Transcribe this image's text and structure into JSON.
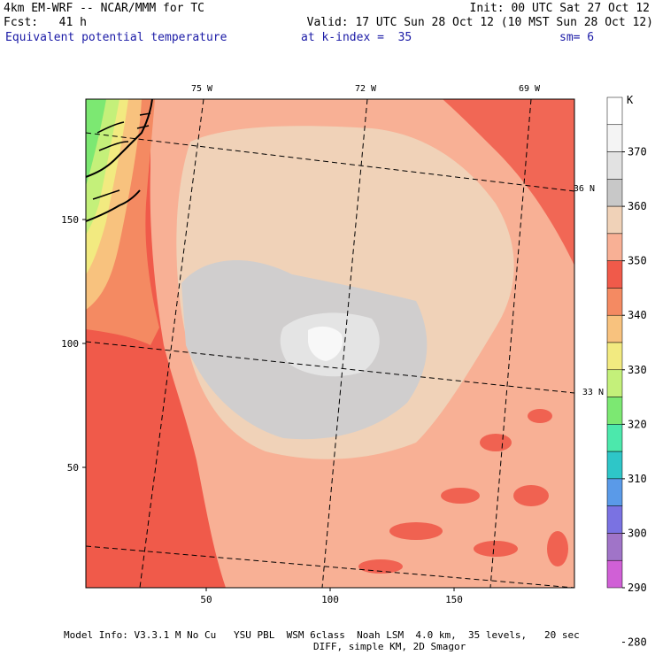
{
  "header": {
    "line1_left": "4km EM-WRF -- NCAR/MMM for TC",
    "line1_right": "Init: 00 UTC Sat 27 Oct 12",
    "line2_left": "Fcst:   41 h",
    "line2_right": "Valid: 17 UTC Sun 28 Oct 12 (10 MST Sun 28 Oct 12)",
    "field_name": "Equivalent potential temperature",
    "level": "at k-index =  35",
    "smoothing": "sm= 6"
  },
  "map": {
    "x_ticks": [
      "50",
      "100",
      "150"
    ],
    "y_ticks": [
      "50",
      "100",
      "150"
    ],
    "lon_labels": [
      "75 W",
      "72 W",
      "69 W"
    ],
    "lat_labels": [
      "36 N",
      "33 N"
    ]
  },
  "colorbar": {
    "unit": "K",
    "labels": [
      "370",
      "360",
      "350",
      "340",
      "330",
      "320",
      "310",
      "300",
      "290",
      "280"
    ],
    "colors": [
      "#ffffff",
      "#f4f4f4",
      "#e2e2e2",
      "#c8c8c8",
      "#f0d2b8",
      "#f8b095",
      "#f05a4a",
      "#f48a62",
      "#f8c27e",
      "#f2ea80",
      "#c4f07a",
      "#7ce872",
      "#4ce8ac",
      "#2ec6c8",
      "#5a9ae8",
      "#7a72e2",
      "#a074c8",
      "#d060d6"
    ]
  },
  "footer": {
    "line1": "Model Info: V3.3.1 M No Cu   YSU PBL  WSM 6class  Noah LSM  4.0 km,  35 levels,   20 sec",
    "line2": "DIFF, simple KM, 2D Smagor"
  }
}
